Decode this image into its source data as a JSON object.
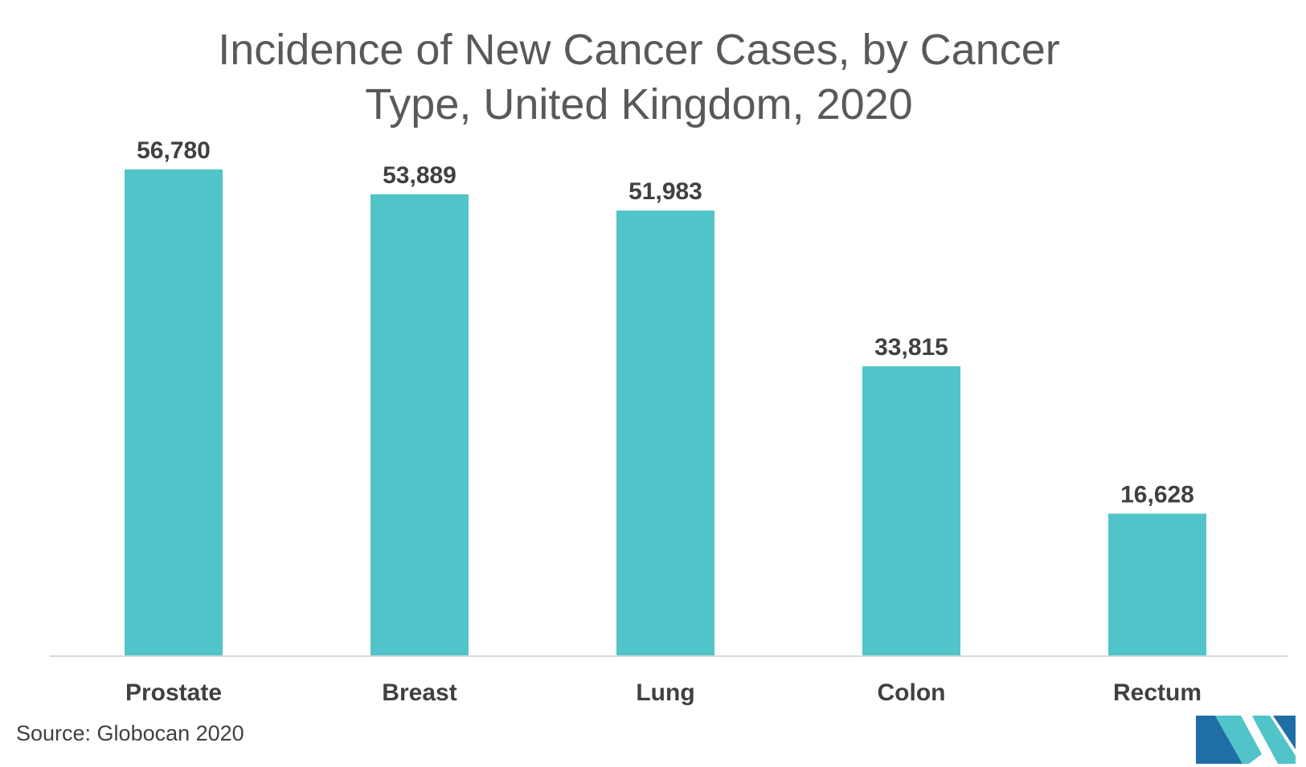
{
  "chart_data": {
    "type": "bar",
    "title": "Incidence of New Cancer Cases, by Cancer Type, United Kingdom, 2020",
    "title_lines": [
      "Incidence of New Cancer Cases, by Cancer",
      "Type, United Kingdom, 2020"
    ],
    "categories": [
      "Prostate",
      "Breast",
      "Lung",
      "Colon",
      "Rectum"
    ],
    "values": [
      56780,
      53889,
      51983,
      33815,
      16628
    ],
    "data_labels": [
      "56,780",
      "53,889",
      "51,983",
      "33,815",
      "16,628"
    ],
    "xlabel": "",
    "ylabel": "",
    "ylim": [
      0,
      56780
    ],
    "grid": false,
    "legend": "none",
    "bar_color": "#50C4C8"
  },
  "source": "Source: Globocan 2020",
  "colors": {
    "text": "#404040",
    "title": "#595959",
    "axis": "#d9d9d9",
    "logo_dark": "#1f6fa6",
    "logo_light": "#50C4C8"
  }
}
